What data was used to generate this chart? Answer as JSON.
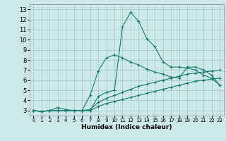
{
  "title": "",
  "xlabel": "Humidex (Indice chaleur)",
  "ylabel": "",
  "xlim": [
    -0.5,
    23.5
  ],
  "ylim": [
    2.5,
    13.5
  ],
  "xticks": [
    0,
    1,
    2,
    3,
    4,
    5,
    6,
    7,
    8,
    9,
    10,
    11,
    12,
    13,
    14,
    15,
    16,
    17,
    18,
    19,
    20,
    21,
    22,
    23
  ],
  "yticks": [
    3,
    4,
    5,
    6,
    7,
    8,
    9,
    10,
    11,
    12,
    13
  ],
  "background_color": "#cce8e8",
  "grid_color": "#9dc8c8",
  "line_color": "#1a7a6e",
  "lines": [
    {
      "x": [
        0,
        1,
        2,
        3,
        4,
        5,
        6,
        7,
        8,
        9,
        10,
        11,
        12,
        13,
        14,
        15,
        16,
        17,
        18,
        19,
        20,
        21,
        22,
        23
      ],
      "y": [
        3,
        2.9,
        3.0,
        3.3,
        3.1,
        3.0,
        3.0,
        3.0,
        4.4,
        4.8,
        5.0,
        11.3,
        12.7,
        11.8,
        10.1,
        9.3,
        7.8,
        7.3,
        7.3,
        7.2,
        7.0,
        6.5,
        6.2,
        5.5
      ]
    },
    {
      "x": [
        0,
        1,
        2,
        3,
        4,
        5,
        6,
        7,
        8,
        9,
        10,
        11,
        12,
        13,
        14,
        15,
        16,
        17,
        18,
        19,
        20,
        21,
        22,
        23
      ],
      "y": [
        3,
        2.9,
        3.0,
        3.0,
        3.0,
        3.0,
        3.0,
        4.5,
        6.9,
        8.2,
        8.5,
        8.2,
        7.8,
        7.5,
        7.1,
        6.8,
        6.6,
        6.3,
        6.2,
        7.3,
        7.3,
        7.0,
        6.5,
        5.5
      ]
    },
    {
      "x": [
        0,
        1,
        2,
        3,
        4,
        5,
        6,
        7,
        8,
        9,
        10,
        11,
        12,
        13,
        14,
        15,
        16,
        17,
        18,
        19,
        20,
        21,
        22,
        23
      ],
      "y": [
        3,
        2.9,
        3.0,
        3.0,
        3.0,
        3.0,
        3.0,
        3.1,
        3.8,
        4.2,
        4.5,
        4.8,
        5.1,
        5.4,
        5.6,
        5.8,
        6.0,
        6.2,
        6.4,
        6.6,
        6.7,
        6.8,
        6.9,
        7.0
      ]
    },
    {
      "x": [
        0,
        1,
        2,
        3,
        4,
        5,
        6,
        7,
        8,
        9,
        10,
        11,
        12,
        13,
        14,
        15,
        16,
        17,
        18,
        19,
        20,
        21,
        22,
        23
      ],
      "y": [
        3,
        2.9,
        3.0,
        3.0,
        3.0,
        3.0,
        3.0,
        3.0,
        3.4,
        3.7,
        3.9,
        4.1,
        4.3,
        4.5,
        4.7,
        4.9,
        5.1,
        5.3,
        5.5,
        5.7,
        5.9,
        6.0,
        6.1,
        6.2
      ]
    }
  ]
}
